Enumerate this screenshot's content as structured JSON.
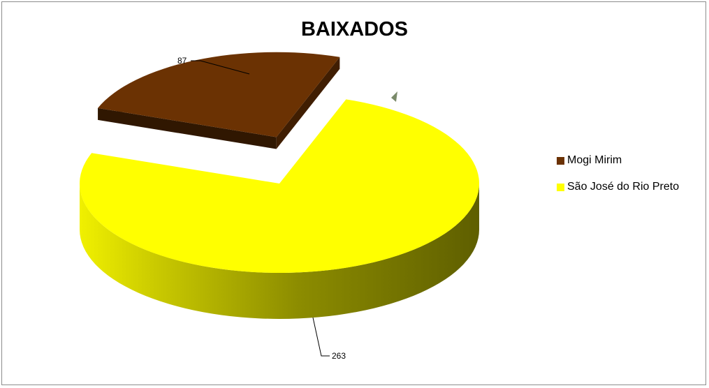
{
  "chart_data": {
    "type": "pie",
    "title": "BAIXADOS",
    "categories": [
      "Mogi Mirim",
      "São José do Rio Preto"
    ],
    "values": [
      87,
      263
    ],
    "colors": [
      "#6b3203",
      "#ffff00"
    ],
    "data_labels": [
      "87",
      "263"
    ],
    "legend_position": "right",
    "style": "3d-exploded"
  }
}
